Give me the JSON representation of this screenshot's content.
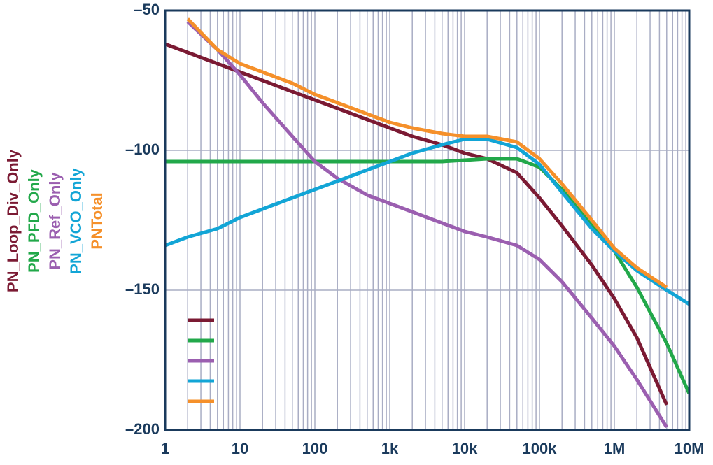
{
  "chart_data": {
    "type": "line",
    "x": [
      1,
      2,
      5,
      10,
      20,
      50,
      100,
      200,
      500,
      1000,
      2000,
      5000,
      10000,
      20000,
      50000,
      100000,
      200000,
      500000,
      1000000,
      2000000,
      5000000,
      10000000
    ],
    "series": [
      {
        "name": "PN_Loop_Div_Only",
        "color": "#7b1a33",
        "values": [
          -62,
          -65,
          -69,
          -72,
          -75,
          -79,
          -82,
          -85,
          -89,
          -92,
          -95,
          -98,
          -101,
          -103,
          -108,
          -117,
          -127,
          -141,
          -153,
          -167,
          -191,
          null
        ]
      },
      {
        "name": "PN_PFD_Only",
        "color": "#22a84a",
        "values": [
          -104,
          -104,
          -104,
          -104,
          -104,
          -104,
          -104,
          -104,
          -104,
          -104,
          -104,
          -104,
          -103.5,
          -103,
          -103,
          -106,
          -114,
          -127,
          -136,
          -149,
          -169,
          -187
        ]
      },
      {
        "name": "PN_Ref_Only",
        "color": "#9b5fb0",
        "values": [
          null,
          -54,
          -64,
          -73,
          -83,
          -95,
          -104,
          -110,
          -116,
          -119,
          -122,
          -126,
          -129,
          -131,
          -134,
          -139,
          -147,
          -160,
          -170,
          -182,
          -199,
          null
        ]
      },
      {
        "name": "PN_VCO_Only",
        "color": "#12a5d6",
        "values": [
          -134,
          -131,
          -128,
          -124,
          -121,
          -117,
          -114,
          -111,
          -107,
          -104,
          -101,
          -98,
          -96,
          -96,
          -99,
          -105,
          -115,
          -128,
          -136,
          -143,
          -150,
          -155
        ]
      },
      {
        "name": "PNTotal",
        "color": "#f5902a",
        "values": [
          null,
          -53,
          -64,
          -69,
          -72,
          -76,
          -80,
          -83,
          -87,
          -90,
          -92,
          -94,
          -95,
          -95,
          -97,
          -103,
          -112,
          -125,
          -135,
          -142,
          -149,
          null
        ]
      }
    ],
    "xlog": true,
    "xlim": [
      1,
      10000000
    ],
    "xticks": [
      1,
      10,
      100,
      {
        "value": 1000,
        "label": "1k"
      },
      {
        "value": 10000,
        "label": "10k"
      },
      {
        "value": 100000,
        "label": "100k"
      },
      {
        "value": 1000000,
        "label": "1M"
      },
      {
        "value": 10000000,
        "label": "10M"
      }
    ],
    "ylim": [
      -200,
      -50
    ],
    "yticks": [
      {
        "value": -50,
        "label": "–50"
      },
      {
        "value": -100,
        "label": "–100"
      },
      {
        "value": -150,
        "label": "–150"
      },
      {
        "value": -200,
        "label": "–200"
      }
    ],
    "grid": true,
    "minor_grid": true
  }
}
